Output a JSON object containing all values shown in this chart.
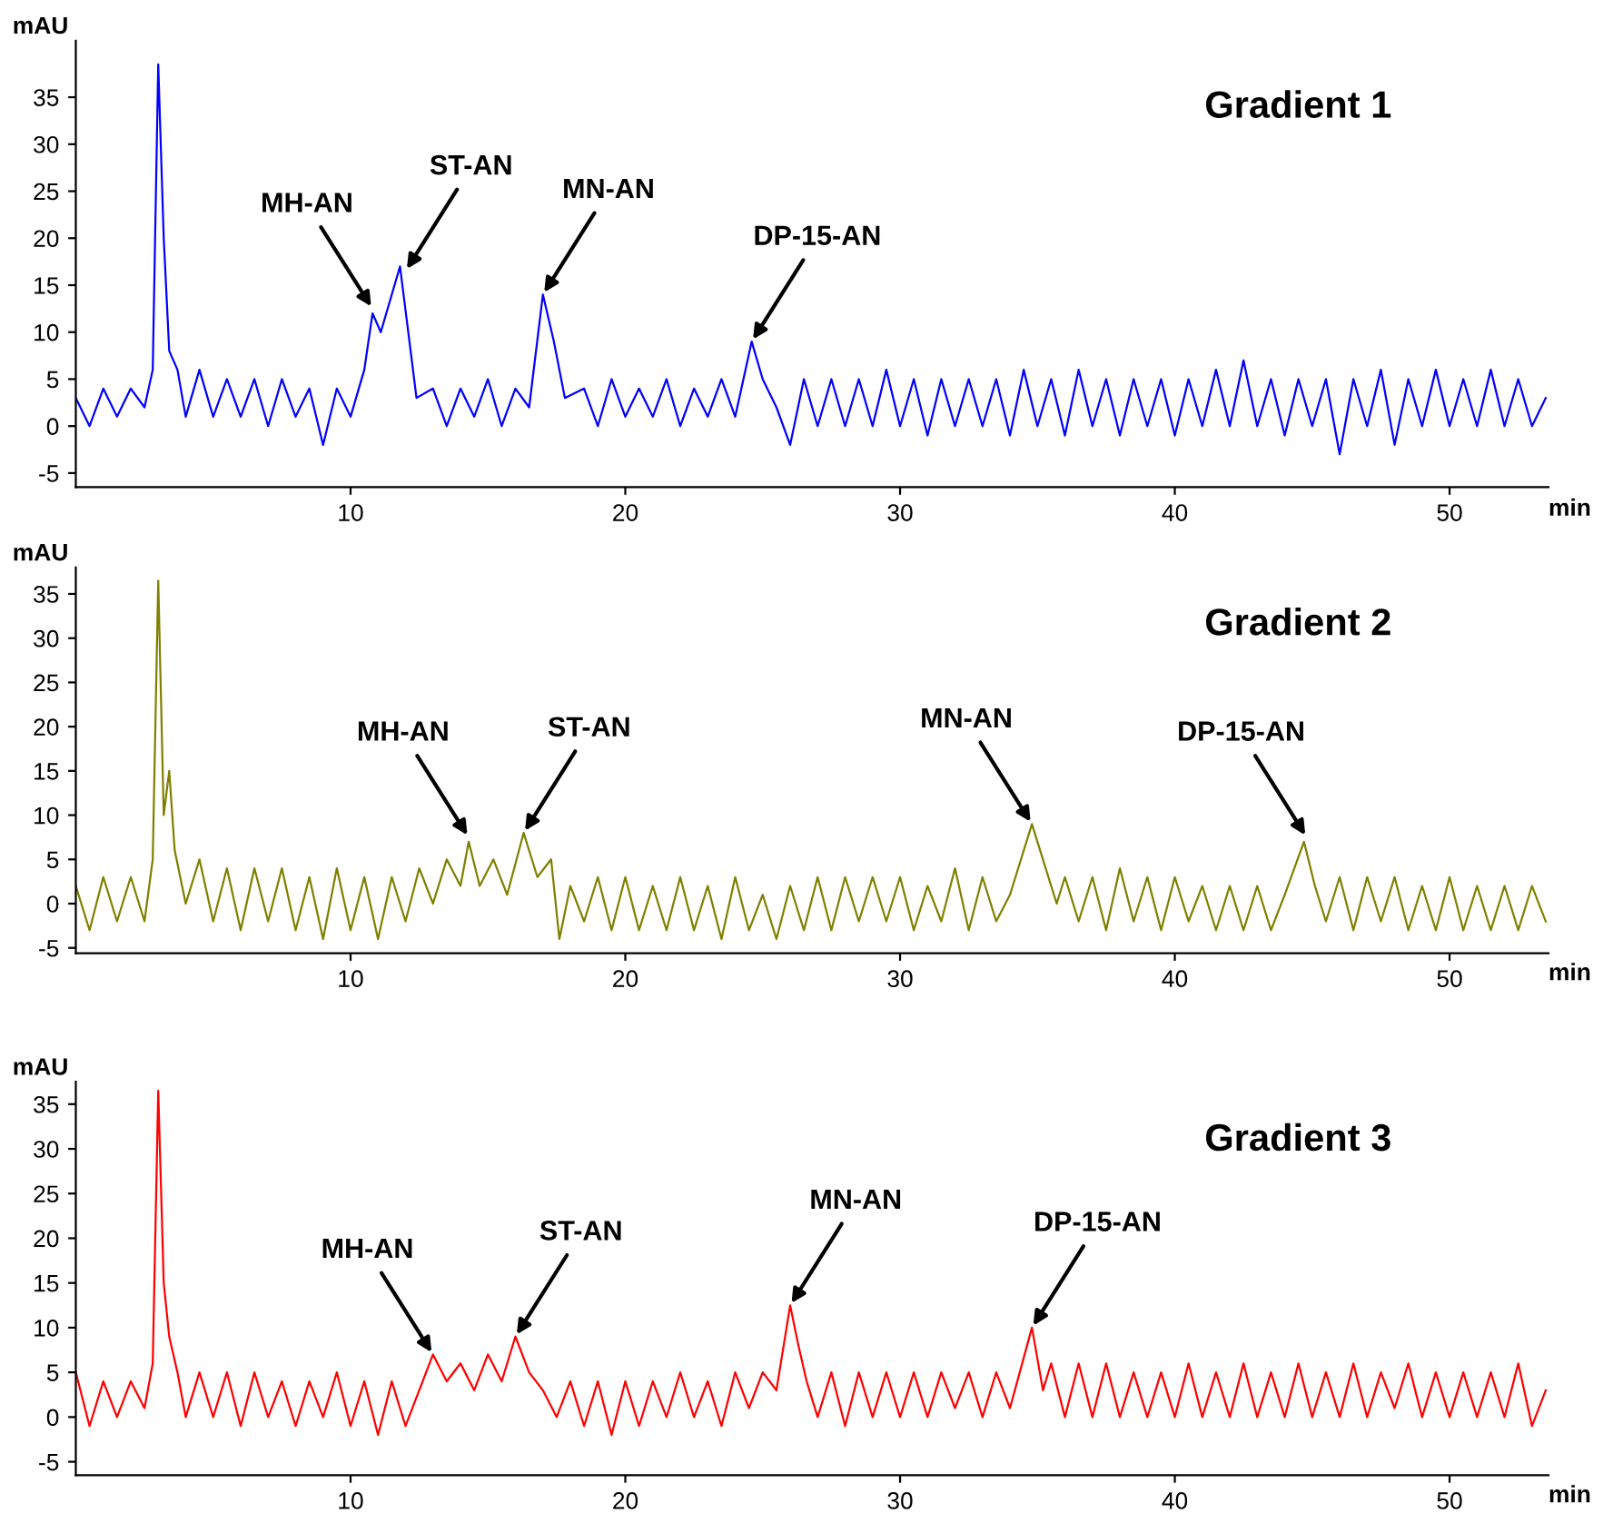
{
  "chart_data": [
    {
      "type": "line",
      "title": "Gradient 1",
      "xlabel": "min",
      "ylabel": "mAU",
      "xlim": [
        0,
        53.6
      ],
      "ylim": [
        -6.5,
        41
      ],
      "xticks": [
        10,
        20,
        30,
        40,
        50
      ],
      "yticks": [
        -5,
        0,
        5,
        10,
        15,
        20,
        25,
        30,
        35
      ],
      "grid": false,
      "legend": false,
      "series": [
        {
          "color": "#0000ff",
          "x": [
            0,
            0.5,
            1,
            1.5,
            2,
            2.5,
            2.8,
            3.0,
            3.2,
            3.4,
            3.7,
            4,
            4.5,
            5,
            5.5,
            6,
            6.5,
            7,
            7.5,
            8,
            8.5,
            9,
            9.5,
            10,
            10.5,
            10.8,
            11.1,
            11.4,
            11.8,
            12.1,
            12.4,
            13,
            13.5,
            14,
            14.5,
            15,
            15.5,
            16,
            16.5,
            17,
            17.4,
            17.8,
            18.5,
            19,
            19.5,
            20,
            20.5,
            21,
            21.5,
            22,
            22.5,
            23,
            23.5,
            24,
            24.6,
            25,
            25.5,
            26,
            26.5,
            27,
            27.5,
            28,
            28.5,
            29,
            29.5,
            30,
            30.5,
            31,
            31.5,
            32,
            32.5,
            33,
            33.5,
            34,
            34.5,
            35,
            35.5,
            36,
            36.5,
            37,
            37.5,
            38,
            38.5,
            39,
            39.5,
            40,
            40.5,
            41,
            41.5,
            42,
            42.5,
            43,
            43.5,
            44,
            44.5,
            45,
            45.5,
            46,
            46.5,
            47,
            47.5,
            48,
            48.5,
            49,
            49.5,
            50,
            50.5,
            51,
            51.5,
            52,
            52.5,
            53,
            53.5
          ],
          "values": [
            3,
            0,
            4,
            1,
            4,
            2,
            6,
            38.5,
            20,
            8,
            6,
            1,
            6,
            1,
            5,
            1,
            5,
            0,
            5,
            1,
            4,
            -2,
            4,
            1,
            6,
            12,
            10,
            13,
            17,
            10,
            3,
            4,
            0,
            4,
            1,
            5,
            0,
            4,
            2,
            14,
            9,
            3,
            4,
            0,
            5,
            1,
            4,
            1,
            5,
            0,
            4,
            1,
            5,
            1,
            9,
            5,
            2,
            -2,
            5,
            0,
            5,
            0,
            5,
            0,
            6,
            0,
            5,
            -1,
            5,
            0,
            5,
            0,
            5,
            -1,
            6,
            0,
            5,
            -1,
            6,
            0,
            5,
            -1,
            5,
            0,
            5,
            -1,
            5,
            0,
            6,
            0,
            7,
            0,
            5,
            -1,
            5,
            0,
            5,
            -3,
            5,
            0,
            6,
            -2,
            5,
            0,
            6,
            0,
            5,
            0,
            6,
            0,
            5,
            0,
            3
          ]
        }
      ],
      "annotations": [
        {
          "text": "MH-AN",
          "x": 10.8,
          "y": 12.5
        },
        {
          "text": "ST-AN",
          "x": 12.0,
          "y": 16.5
        },
        {
          "text": "MN-AN",
          "x": 17,
          "y": 14
        },
        {
          "text": "DP-15-AN",
          "x": 24.6,
          "y": 9
        }
      ]
    },
    {
      "type": "line",
      "title": "Gradient 2",
      "xlabel": "min",
      "ylabel": "mAU",
      "xlim": [
        0,
        53.6
      ],
      "ylim": [
        -5.6,
        38
      ],
      "xticks": [
        10,
        20,
        30,
        40,
        50
      ],
      "yticks": [
        -5,
        0,
        5,
        10,
        15,
        20,
        25,
        30,
        35
      ],
      "grid": false,
      "legend": false,
      "series": [
        {
          "color": "#808000",
          "x": [
            0,
            0.5,
            1,
            1.5,
            2,
            2.5,
            2.8,
            3.0,
            3.2,
            3.4,
            3.6,
            4,
            4.5,
            5,
            5.5,
            6,
            6.5,
            7,
            7.5,
            8,
            8.5,
            9,
            9.5,
            10,
            10.5,
            11,
            11.5,
            12,
            12.5,
            13,
            13.5,
            14,
            14.3,
            14.7,
            15.2,
            15.7,
            16.3,
            16.8,
            17.3,
            17.6,
            18,
            18.5,
            19,
            19.5,
            20,
            20.5,
            21,
            21.5,
            22,
            22.5,
            23,
            23.5,
            24,
            24.5,
            25,
            25.5,
            26,
            26.5,
            27,
            27.5,
            28,
            28.5,
            29,
            29.5,
            30,
            30.5,
            31,
            31.5,
            32,
            32.5,
            33,
            33.5,
            34,
            34.8,
            35.2,
            35.7,
            36,
            36.5,
            37,
            37.5,
            38,
            38.5,
            39,
            39.5,
            40,
            40.5,
            41,
            41.5,
            42,
            42.5,
            43,
            43.5,
            44,
            44.7,
            45.1,
            45.5,
            46,
            46.5,
            47,
            47.5,
            48,
            48.5,
            49,
            49.5,
            50,
            50.5,
            51,
            51.5,
            52,
            52.5,
            53,
            53.5
          ],
          "values": [
            2,
            -3,
            3,
            -2,
            3,
            -2,
            5,
            36.5,
            10,
            15,
            6,
            0,
            5,
            -2,
            4,
            -3,
            4,
            -2,
            4,
            -3,
            3,
            -4,
            4,
            -3,
            3,
            -4,
            3,
            -2,
            4,
            0,
            5,
            2,
            7,
            2,
            5,
            1,
            8,
            3,
            5,
            -4,
            2,
            -2,
            3,
            -3,
            3,
            -3,
            2,
            -3,
            3,
            -3,
            2,
            -4,
            3,
            -3,
            1,
            -4,
            2,
            -3,
            3,
            -3,
            3,
            -2,
            3,
            -2,
            3,
            -3,
            2,
            -2,
            4,
            -3,
            3,
            -2,
            1,
            9,
            5,
            0,
            3,
            -2,
            3,
            -3,
            4,
            -2,
            3,
            -3,
            3,
            -2,
            2,
            -3,
            2,
            -3,
            2,
            -3,
            1,
            7,
            2,
            -2,
            3,
            -3,
            3,
            -2,
            3,
            -3,
            2,
            -3,
            3,
            -3,
            2,
            -3,
            2,
            -3,
            2,
            -2
          ]
        }
      ],
      "annotations": [
        {
          "text": "MH-AN",
          "x": 14.3,
          "y": 7.5
        },
        {
          "text": "ST-AN",
          "x": 16.3,
          "y": 8
        },
        {
          "text": "MN-AN",
          "x": 34.8,
          "y": 9
        },
        {
          "text": "DP-15-AN",
          "x": 44.8,
          "y": 7.5
        }
      ]
    },
    {
      "type": "line",
      "title": "Gradient 3",
      "xlabel": "min",
      "ylabel": "mAU",
      "xlim": [
        0,
        53.6
      ],
      "ylim": [
        -6.5,
        37.5
      ],
      "xticks": [
        10,
        20,
        30,
        40,
        50
      ],
      "yticks": [
        -5,
        0,
        5,
        10,
        15,
        20,
        25,
        30,
        35
      ],
      "grid": false,
      "legend": false,
      "series": [
        {
          "color": "#ff0000",
          "x": [
            0,
            0.5,
            1,
            1.5,
            2,
            2.5,
            2.8,
            3.0,
            3.2,
            3.4,
            3.7,
            4,
            4.5,
            5,
            5.5,
            6,
            6.5,
            7,
            7.5,
            8,
            8.5,
            9,
            9.5,
            10,
            10.5,
            11,
            11.5,
            12,
            12.5,
            13,
            13.5,
            14,
            14.5,
            15,
            15.5,
            16,
            16.5,
            17,
            17.5,
            18,
            18.5,
            19,
            19.5,
            20,
            20.5,
            21,
            21.5,
            22,
            22.5,
            23,
            23.5,
            24,
            24.5,
            25,
            25.5,
            26,
            26.3,
            26.6,
            27,
            27.5,
            28,
            28.5,
            29,
            29.5,
            30,
            30.5,
            31,
            31.5,
            32,
            32.5,
            33,
            33.5,
            34,
            34.8,
            35.2,
            35.5,
            36,
            36.5,
            37,
            37.5,
            38,
            38.5,
            39,
            39.5,
            40,
            40.5,
            41,
            41.5,
            42,
            42.5,
            43,
            43.5,
            44,
            44.5,
            45,
            45.5,
            46,
            46.5,
            47,
            47.5,
            48,
            48.5,
            49,
            49.5,
            50,
            50.5,
            51,
            51.5,
            52,
            52.5,
            53,
            53.5
          ],
          "values": [
            5,
            -1,
            4,
            0,
            4,
            1,
            6,
            36.5,
            15,
            9,
            5,
            0,
            5,
            0,
            5,
            -1,
            5,
            0,
            4,
            -1,
            4,
            0,
            5,
            -1,
            4,
            -2,
            4,
            -1,
            3,
            7,
            4,
            6,
            3,
            7,
            4,
            9,
            5,
            3,
            0,
            4,
            -1,
            4,
            -2,
            4,
            -1,
            4,
            0,
            5,
            0,
            4,
            -1,
            5,
            1,
            5,
            3,
            12.5,
            8,
            4,
            0,
            5,
            -1,
            5,
            0,
            5,
            0,
            5,
            0,
            5,
            1,
            5,
            0,
            5,
            1,
            10,
            3,
            6,
            0,
            6,
            0,
            6,
            0,
            5,
            0,
            5,
            0,
            6,
            0,
            5,
            0,
            6,
            0,
            5,
            0,
            6,
            0,
            5,
            0,
            6,
            0,
            5,
            1,
            6,
            0,
            5,
            0,
            5,
            0,
            5,
            0,
            6,
            -1,
            3
          ]
        }
      ],
      "annotations": [
        {
          "text": "MH-AN",
          "x": 13.0,
          "y": 7
        },
        {
          "text": "ST-AN",
          "x": 16,
          "y": 9
        },
        {
          "text": "MN-AN",
          "x": 26,
          "y": 12.5
        },
        {
          "text": "DP-15-AN",
          "x": 34.8,
          "y": 10
        }
      ]
    }
  ]
}
